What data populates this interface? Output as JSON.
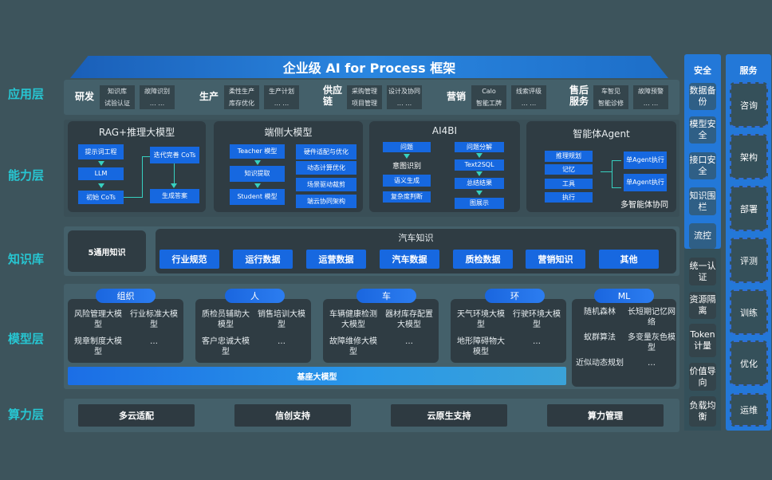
{
  "title": "企业级 AI for Process 框架",
  "layers": {
    "app": "应用层",
    "capability": "能力层",
    "knowledge": "知识库",
    "model": "模型层",
    "compute": "算力层"
  },
  "app": [
    {
      "name": "研发",
      "cells": [
        "知识库",
        "故障识别",
        "试验认证",
        "… …"
      ]
    },
    {
      "name": "生产",
      "cells": [
        "柔性生产",
        "生产计划",
        "库存优化",
        "… …"
      ]
    },
    {
      "name": "供应链",
      "cells": [
        "采购管理",
        "设计及协同",
        "项目管理",
        "… …"
      ]
    },
    {
      "name": "营销",
      "cells": [
        "Calo",
        "线索评级",
        "智能工牌",
        "… …"
      ]
    },
    {
      "name": "售后服务",
      "cells": [
        "车智见",
        "故障预警",
        "智能诊修",
        "… …"
      ]
    }
  ],
  "capability": {
    "rag": {
      "title": "RAG+推理大模型",
      "prompt": "提示词工程",
      "llm": "LLM",
      "init": "初始 CoTs",
      "iter": "迭代完善 CoTs",
      "answer": "生成答案"
    },
    "edge": {
      "title": "端侧大模型",
      "teacher": "Teacher 模型",
      "extract": "知识提取",
      "student": "Student 模型",
      "right": [
        "硬件适配与优化",
        "动态计算优化",
        "场景驱动裁剪",
        "端云协同架构"
      ]
    },
    "ai4bi": {
      "title": "AI4BI",
      "question": "问题",
      "intent": "意图识别",
      "semantic": "语义生成",
      "complexity": "复杂度判断",
      "right": [
        "问题分解",
        "Text2SQL",
        "总结结果",
        "图展示"
      ]
    },
    "agent": {
      "title": "智能体Agent",
      "left": [
        "推理规划",
        "记忆",
        "工具",
        "执行"
      ],
      "single": [
        "单Agent执行",
        "单Agent执行"
      ],
      "multi": "多智能体协同"
    }
  },
  "knowledge": {
    "general": "5通用知识",
    "auto_title": "汽车知识",
    "items": [
      "行业规范",
      "运行数据",
      "运营数据",
      "汽车数据",
      "质检数据",
      "营销知识",
      "其他"
    ]
  },
  "model": {
    "groups": [
      {
        "name": "组织",
        "items": [
          "风险管理大模型",
          "行业标准大模型",
          "规章制度大模型",
          "…"
        ]
      },
      {
        "name": "人",
        "items": [
          "质检员辅助大模型",
          "销售培训大模型",
          "客户忠诚大模型",
          "…"
        ]
      },
      {
        "name": "车",
        "items": [
          "车辆健康检测大模型",
          "器材库存配置大模型",
          "故障维修大模型",
          "…"
        ]
      },
      {
        "name": "环",
        "items": [
          "天气环境大模型",
          "行驶环境大模型",
          "地形障碍物大模型",
          "…"
        ]
      },
      {
        "name": "ML",
        "items": [
          "随机森林",
          "长短期记忆网络",
          "蚁群算法",
          "多变量灰色模型",
          "近似动态规划",
          "…"
        ]
      }
    ],
    "base": "基座大模型"
  },
  "compute": [
    "多云适配",
    "信创支持",
    "云原生支持",
    "算力管理"
  ],
  "security": {
    "title": "安全",
    "items": [
      "数据备份",
      "模型安全",
      "接口安全",
      "知识围栏",
      "流控",
      "统一认证",
      "资源隔离",
      "Token计量",
      "价值导向",
      "负载均衡"
    ]
  },
  "service": {
    "title": "服务",
    "items": [
      "咨询",
      "架构",
      "部署",
      "评测",
      "训练",
      "优化",
      "运维"
    ]
  }
}
